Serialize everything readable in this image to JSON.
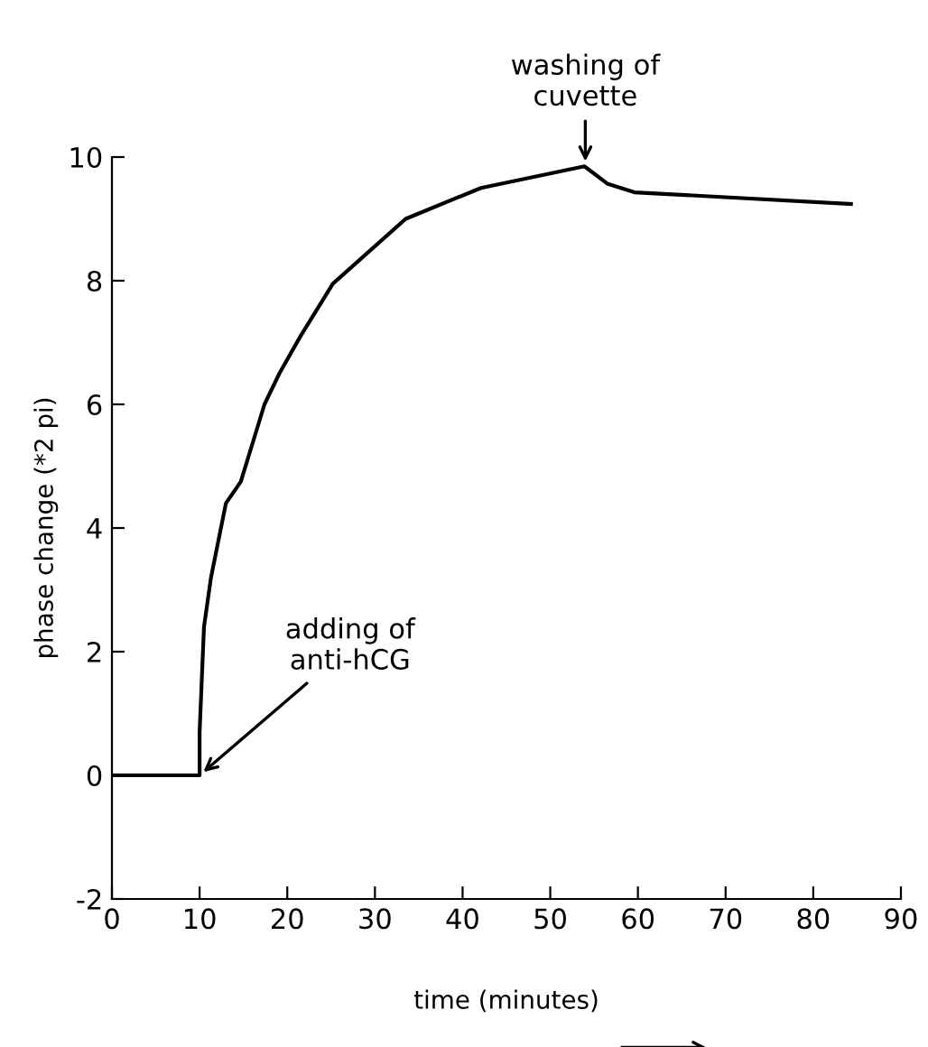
{
  "chart_data": {
    "type": "line",
    "xlabel": "time (minutes)",
    "ylabel": "phase change (*2 pi)",
    "x": [
      0,
      10,
      10,
      10.5,
      11.3,
      13,
      14.7,
      17.4,
      19.1,
      21.5,
      25.2,
      33.5,
      42.1,
      53.9,
      56.5,
      59.6,
      84.3
    ],
    "values": [
      0,
      0,
      0.7,
      2.4,
      3.2,
      4.4,
      4.75,
      6.0,
      6.5,
      7.1,
      7.95,
      9.0,
      9.5,
      9.85,
      9.57,
      9.43,
      9.24
    ],
    "color": "#000000",
    "xlim": [
      0,
      90
    ],
    "xticks": [
      0,
      10,
      20,
      30,
      40,
      50,
      60,
      70,
      80,
      90
    ],
    "ylim": [
      -2,
      10
    ],
    "yticks": [
      -2,
      0,
      2,
      4,
      6,
      8,
      10
    ],
    "grid": false,
    "marker": "none",
    "line_style": "solid",
    "annotations": [
      {
        "text": "adding of\nanti-hCG",
        "x": 10,
        "y": 0
      },
      {
        "text": "washing of\ncuvette",
        "x": 54,
        "y": 9.85
      }
    ]
  }
}
